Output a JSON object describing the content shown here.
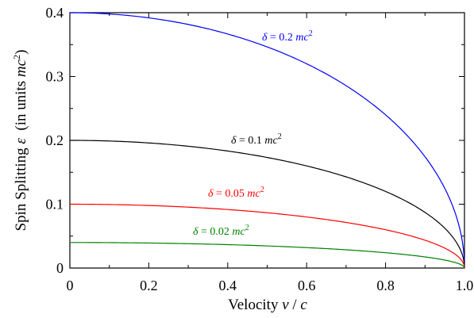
{
  "chart_data": {
    "type": "line",
    "xlabel": {
      "prefix": "Velocity ",
      "var1": "v",
      "sep": " / ",
      "var2": "c"
    },
    "ylabel": {
      "prefix": "Spin Splitting ",
      "sym": "ε",
      "mid": "  (in units ",
      "unit": "mc",
      "sup": "2",
      "close": ")"
    },
    "xlim": [
      0,
      1.0
    ],
    "ylim": [
      0,
      0.4
    ],
    "x_ticks": [
      "0",
      "0.2",
      "0.4",
      "0.6",
      "0.8",
      "1.0"
    ],
    "y_ticks": [
      "0",
      "0.1",
      "0.2",
      "0.3",
      "0.4"
    ],
    "x_tick_values": [
      0,
      0.2,
      0.4,
      0.6,
      0.8,
      1.0
    ],
    "y_tick_values": [
      0,
      0.1,
      0.2,
      0.3,
      0.4
    ],
    "grid": false,
    "series": [
      {
        "delta": 0.2,
        "color": "#0000ff",
        "label": {
          "sym": "δ",
          "eq": " = 0.2 ",
          "unit": "mc",
          "sup": "2"
        },
        "x": [
          0,
          0.1,
          0.2,
          0.3,
          0.4,
          0.5,
          0.6,
          0.7,
          0.8,
          0.85,
          0.9,
          0.95,
          0.98,
          1.0
        ],
        "y": [
          0.4,
          0.398,
          0.392,
          0.382,
          0.367,
          0.346,
          0.32,
          0.286,
          0.24,
          0.211,
          0.174,
          0.125,
          0.08,
          0.0
        ]
      },
      {
        "delta": 0.1,
        "color": "#000000",
        "label": {
          "sym": "δ",
          "eq": " = 0.1 ",
          "unit": "mc",
          "sup": "2"
        },
        "x": [
          0,
          0.1,
          0.2,
          0.3,
          0.4,
          0.5,
          0.6,
          0.7,
          0.8,
          0.85,
          0.9,
          0.95,
          0.98,
          1.0
        ],
        "y": [
          0.2,
          0.199,
          0.196,
          0.191,
          0.183,
          0.173,
          0.16,
          0.143,
          0.12,
          0.105,
          0.087,
          0.062,
          0.04,
          0.0
        ]
      },
      {
        "delta": 0.05,
        "color": "#ff0000",
        "label": {
          "sym": "δ",
          "eq": " = 0.05 ",
          "unit": "mc",
          "sup": "2"
        },
        "x": [
          0,
          0.1,
          0.2,
          0.3,
          0.4,
          0.5,
          0.6,
          0.7,
          0.8,
          0.85,
          0.9,
          0.95,
          0.98,
          1.0
        ],
        "y": [
          0.1,
          0.0995,
          0.098,
          0.0954,
          0.0917,
          0.0866,
          0.08,
          0.0714,
          0.06,
          0.0527,
          0.0436,
          0.0312,
          0.0199,
          0.0
        ]
      },
      {
        "delta": 0.02,
        "color": "#008000",
        "label": {
          "sym": "δ",
          "eq": " = 0.02 ",
          "unit": "mc",
          "sup": "2"
        },
        "x": [
          0,
          0.1,
          0.2,
          0.3,
          0.4,
          0.5,
          0.6,
          0.7,
          0.8,
          0.85,
          0.9,
          0.95,
          0.98,
          1.0
        ],
        "y": [
          0.04,
          0.0398,
          0.0392,
          0.0382,
          0.0367,
          0.0346,
          0.032,
          0.0286,
          0.024,
          0.0211,
          0.0174,
          0.0125,
          0.008,
          0.0
        ]
      }
    ]
  }
}
